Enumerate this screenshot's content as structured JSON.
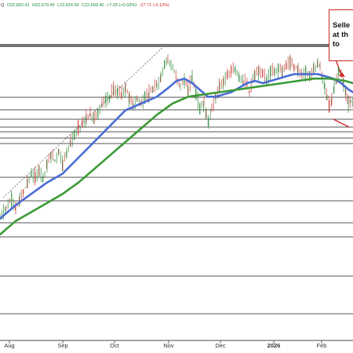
{
  "ohlc_header": {
    "symbol": "Q",
    "open": "O22,662.41",
    "high": "H22,679.45",
    "low": "L22,624.59",
    "close": "C22,669.40",
    "change": "+7.29 (+0.03%)",
    "change2": "-27.71 (-0.12%)"
  },
  "annotation": {
    "lines": [
      "Selle",
      "at th",
      "to"
    ]
  },
  "chart_data": {
    "type": "line",
    "title": "",
    "xlabel": "",
    "ylabel": "",
    "x_tick_labels": [
      "Aug",
      "Sep",
      "Oct",
      "Nov",
      "Dec",
      "2026",
      "Feb"
    ],
    "grid": false,
    "series": [
      {
        "price_path": [
          [
            0,
            20500
          ],
          [
            8,
            20700
          ],
          [
            15,
            20900
          ],
          [
            20,
            20650
          ],
          [
            25,
            20850
          ],
          [
            30,
            21050
          ],
          [
            35,
            21250
          ],
          [
            40,
            21450
          ],
          [
            45,
            21350
          ],
          [
            50,
            21550
          ],
          [
            55,
            21350
          ],
          [
            60,
            21650
          ],
          [
            65,
            21850
          ],
          [
            70,
            21750
          ],
          [
            75,
            21950
          ],
          [
            80,
            21650
          ],
          [
            85,
            21950
          ],
          [
            90,
            22150
          ],
          [
            95,
            22300
          ],
          [
            100,
            22450
          ],
          [
            105,
            22550
          ],
          [
            110,
            22650
          ],
          [
            115,
            22750
          ],
          [
            120,
            22650
          ],
          [
            125,
            22800
          ],
          [
            130,
            23000
          ],
          [
            135,
            23100
          ],
          [
            140,
            23150
          ],
          [
            145,
            23300
          ],
          [
            150,
            23250
          ],
          [
            155,
            23200
          ],
          [
            160,
            23350
          ],
          [
            165,
            23100
          ],
          [
            170,
            22950
          ],
          [
            175,
            23100
          ],
          [
            180,
            23000
          ],
          [
            185,
            23150
          ],
          [
            190,
            23200
          ],
          [
            195,
            23300
          ],
          [
            200,
            23400
          ],
          [
            205,
            23600
          ],
          [
            210,
            23900
          ],
          [
            214,
            24000
          ],
          [
            218,
            23850
          ],
          [
            222,
            23700
          ],
          [
            226,
            23500
          ],
          [
            230,
            23400
          ],
          [
            235,
            23500
          ],
          [
            240,
            23300
          ],
          [
            245,
            23600
          ],
          [
            250,
            23200
          ],
          [
            255,
            22900
          ],
          [
            260,
            23000
          ],
          [
            263,
            22750
          ],
          [
            266,
            22600
          ],
          [
            270,
            22900
          ],
          [
            275,
            23150
          ],
          [
            280,
            23350
          ],
          [
            285,
            23500
          ],
          [
            290,
            23650
          ],
          [
            295,
            23700
          ],
          [
            300,
            23750
          ],
          [
            305,
            23600
          ],
          [
            310,
            23500
          ],
          [
            315,
            23400
          ],
          [
            318,
            23200
          ],
          [
            322,
            23550
          ],
          [
            325,
            23600
          ],
          [
            330,
            23700
          ],
          [
            335,
            23650
          ],
          [
            340,
            23500
          ],
          [
            345,
            23750
          ],
          [
            350,
            23700
          ],
          [
            355,
            23800
          ],
          [
            360,
            23700
          ],
          [
            365,
            23850
          ],
          [
            370,
            23900
          ],
          [
            375,
            23800
          ],
          [
            380,
            23750
          ],
          [
            385,
            23650
          ],
          [
            390,
            23700
          ],
          [
            395,
            23600
          ],
          [
            400,
            23750
          ],
          [
            405,
            23900
          ],
          [
            408,
            23800
          ],
          [
            411,
            23550
          ],
          [
            414,
            23350
          ],
          [
            417,
            23100
          ],
          [
            420,
            22950
          ],
          [
            423,
            23100
          ],
          [
            426,
            23350
          ],
          [
            429,
            23550
          ],
          [
            432,
            23750
          ],
          [
            435,
            23600
          ],
          [
            438,
            23400
          ],
          [
            441,
            23200
          ],
          [
            444,
            23000
          ],
          [
            447,
            23050
          ],
          [
            450,
            23000
          ]
        ]
      },
      {
        "color": "#4a6bd6",
        "values": [
          [
            0,
            20450
          ],
          [
            20,
            20750
          ],
          [
            40,
            21000
          ],
          [
            60,
            21250
          ],
          [
            80,
            21450
          ],
          [
            100,
            21800
          ],
          [
            120,
            22150
          ],
          [
            140,
            22500
          ],
          [
            160,
            22850
          ],
          [
            180,
            23000
          ],
          [
            200,
            23150
          ],
          [
            215,
            23350
          ],
          [
            225,
            23500
          ],
          [
            235,
            23550
          ],
          [
            245,
            23450
          ],
          [
            255,
            23300
          ],
          [
            265,
            23150
          ],
          [
            275,
            23150
          ],
          [
            285,
            23200
          ],
          [
            295,
            23250
          ],
          [
            305,
            23350
          ],
          [
            315,
            23450
          ],
          [
            325,
            23500
          ],
          [
            335,
            23450
          ],
          [
            345,
            23500
          ],
          [
            355,
            23550
          ],
          [
            365,
            23600
          ],
          [
            375,
            23650
          ],
          [
            385,
            23650
          ],
          [
            395,
            23650
          ],
          [
            405,
            23650
          ],
          [
            415,
            23600
          ],
          [
            425,
            23550
          ],
          [
            435,
            23450
          ],
          [
            445,
            23300
          ],
          [
            450,
            23250
          ]
        ]
      },
      {
        "color": "#3a9a35",
        "values": [
          [
            0,
            20100
          ],
          [
            20,
            20400
          ],
          [
            40,
            20600
          ],
          [
            60,
            20800
          ],
          [
            80,
            21000
          ],
          [
            100,
            21250
          ],
          [
            120,
            21550
          ],
          [
            140,
            21850
          ],
          [
            160,
            22150
          ],
          [
            180,
            22450
          ],
          [
            200,
            22750
          ],
          [
            220,
            23000
          ],
          [
            240,
            23150
          ],
          [
            260,
            23200
          ],
          [
            280,
            23250
          ],
          [
            300,
            23300
          ],
          [
            320,
            23350
          ],
          [
            340,
            23400
          ],
          [
            360,
            23450
          ],
          [
            380,
            23500
          ],
          [
            400,
            23550
          ],
          [
            420,
            23550
          ],
          [
            440,
            23500
          ],
          [
            450,
            23450
          ]
        ]
      }
    ]
  }
}
